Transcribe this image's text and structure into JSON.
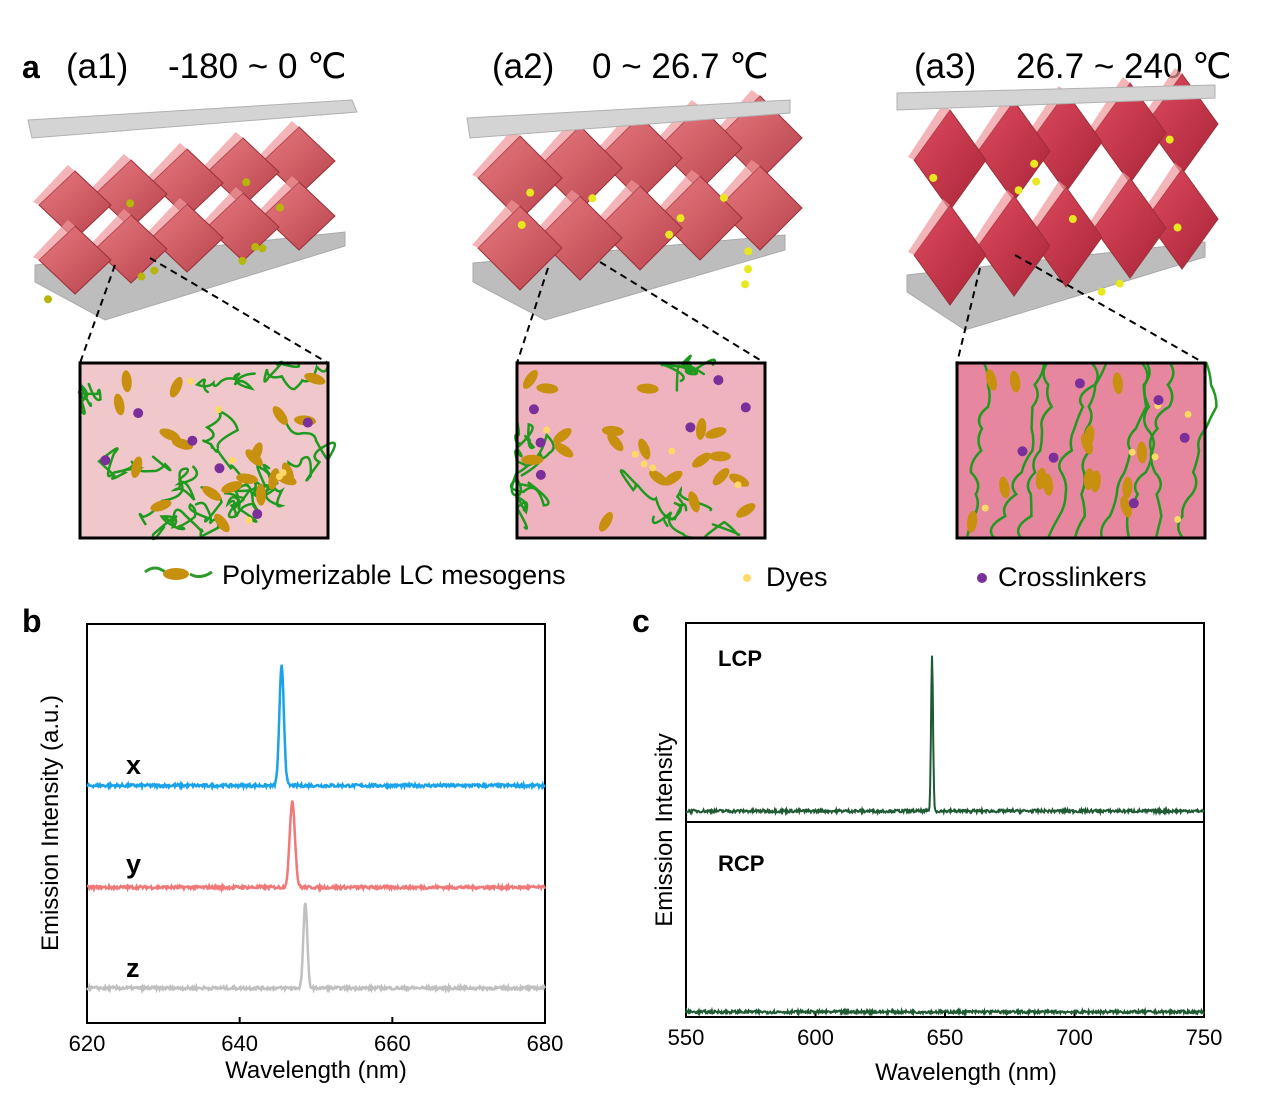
{
  "panel_a": {
    "label": "a",
    "subpanels": [
      {
        "id": "(a1)",
        "range": "-180 ~ 0 ℃",
        "inset_background": "#f0c8cc"
      },
      {
        "id": "(a2)",
        "range": "0 ~ 26.7 ℃",
        "inset_background": "#efb3bf"
      },
      {
        "id": "(a3)",
        "range": "26.7 ~ 240 ℃",
        "inset_background": "#e6869f"
      }
    ],
    "legend": [
      {
        "label": "Polymerizable LC mesogens",
        "icon": "mesogen-icon",
        "color": "#2a9a2a"
      },
      {
        "label": "Dyes",
        "icon": "dye-dot-icon",
        "color": "#ffd966"
      },
      {
        "label": "Crosslinkers",
        "icon": "crosslinker-dot-icon",
        "color": "#7a2f9a"
      }
    ],
    "colors": {
      "cube": "#d9646c",
      "plate": "#c8c8c8",
      "chain": "#1f9a1f",
      "mesogen": "#c8900f",
      "particle": "#c8c800"
    }
  },
  "chart_data": [
    {
      "panel_label": "b",
      "type": "line",
      "xlabel": "Wavelength (nm)",
      "ylabel": "Emission Intensity (a.u.)",
      "xlim": [
        620,
        680
      ],
      "ylim": [
        0,
        4
      ],
      "xticks": [
        620,
        640,
        660,
        680
      ],
      "yticks_shown": false,
      "grid": false,
      "series": [
        {
          "name": "x",
          "color": "#1aa3ea",
          "baseline": 2.38,
          "peak_center": 645.5,
          "peak_amplitude": 1.2,
          "peak_fwhm": 0.7
        },
        {
          "name": "y",
          "color": "#f07878",
          "baseline": 1.36,
          "peak_center": 646.9,
          "peak_amplitude": 0.87,
          "peak_fwhm": 0.8
        },
        {
          "name": "z",
          "color": "#c0c0c0",
          "baseline": 0.35,
          "peak_center": 648.6,
          "peak_amplitude": 0.86,
          "peak_fwhm": 0.6
        }
      ]
    },
    {
      "panel_label": "c",
      "type": "line",
      "xlabel": "Wavelength (nm)",
      "ylabel": "Emission Intensity",
      "xlim": [
        550,
        750
      ],
      "ylim": [
        0,
        1
      ],
      "xticks": [
        550,
        600,
        650,
        700,
        750
      ],
      "yticks_shown": false,
      "grid": false,
      "color": "#1e5a32",
      "subplots": [
        {
          "name": "LCP",
          "baseline": 0.055,
          "peak_center": 645,
          "peak_amplitude": 0.78,
          "peak_fwhm": 0.9
        },
        {
          "name": "RCP",
          "baseline": 0.026,
          "peak_center": null,
          "peak_amplitude": 0,
          "peak_fwhm": null
        }
      ]
    }
  ]
}
